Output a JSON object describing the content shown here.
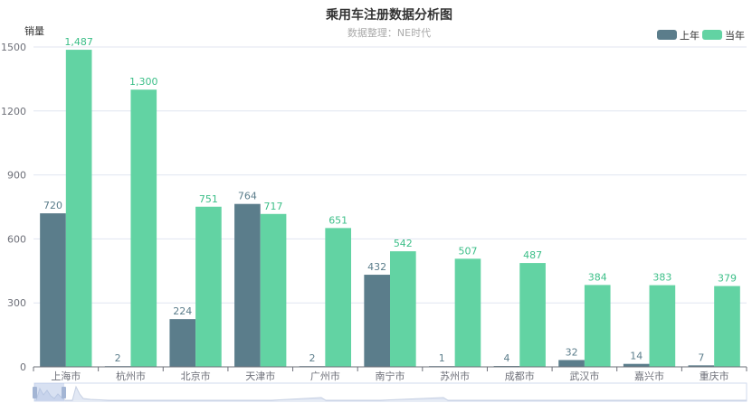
{
  "chart_data": {
    "type": "bar",
    "title": "乘用车注册数据分析图",
    "subtitle": "数据整理：NE时代",
    "ylabel": "销量",
    "xlabel": "",
    "ylim": [
      0,
      1500
    ],
    "yticks": [
      0,
      300,
      600,
      900,
      1200,
      1500
    ],
    "legend_position": "top-right",
    "grid": true,
    "categories": [
      "上海市",
      "杭州市",
      "北京市",
      "天津市",
      "广州市",
      "南宁市",
      "苏州市",
      "成都市",
      "武汉市",
      "嘉兴市",
      "重庆市"
    ],
    "series": [
      {
        "name": "上年",
        "color": "#5b7d8b",
        "values": [
          720,
          2,
          224,
          764,
          2,
          432,
          1,
          4,
          32,
          14,
          7
        ],
        "labels": [
          "720",
          "2",
          "224",
          "764",
          "2",
          "432",
          "1",
          "4",
          "32",
          "14",
          "7"
        ]
      },
      {
        "name": "当年",
        "color": "#62d3a3",
        "values": [
          1487,
          1300,
          751,
          717,
          651,
          542,
          507,
          487,
          384,
          383,
          379
        ],
        "labels": [
          "1,487",
          "1,300",
          "751",
          "717",
          "651",
          "542",
          "507",
          "487",
          "384",
          "383",
          "379"
        ]
      }
    ],
    "data_zoom": true
  }
}
